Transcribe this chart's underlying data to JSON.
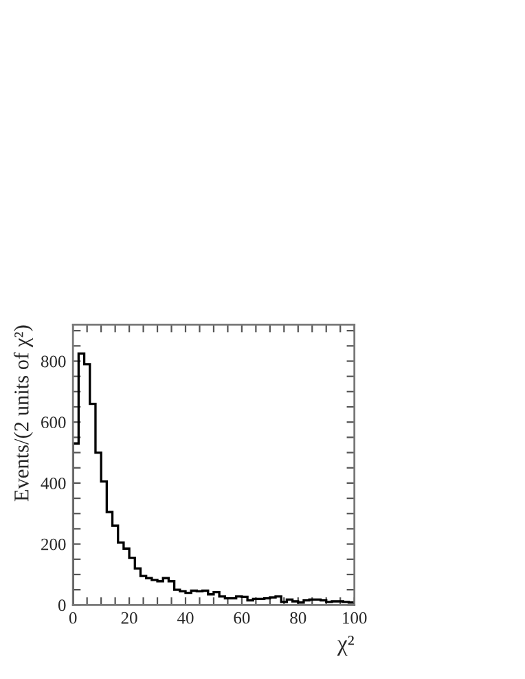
{
  "chart_data": {
    "type": "histogram",
    "xlabel": "χ²",
    "ylabel": "Events/(2 units of χ²)",
    "bins": [
      0,
      2,
      4,
      6,
      8,
      10,
      12,
      14,
      16,
      18,
      20,
      22,
      24,
      26,
      28,
      30,
      32,
      34,
      36,
      38,
      40,
      42,
      44,
      46,
      48,
      50,
      52,
      54,
      56,
      58,
      60,
      62,
      64,
      66,
      68,
      70,
      72,
      74,
      76,
      78,
      80,
      82,
      84,
      86,
      88,
      90,
      92,
      94,
      96,
      98,
      100
    ],
    "values": [
      530,
      825,
      790,
      660,
      500,
      405,
      305,
      260,
      205,
      185,
      155,
      120,
      95,
      88,
      82,
      78,
      88,
      78,
      50,
      45,
      40,
      47,
      45,
      47,
      35,
      42,
      28,
      22,
      22,
      28,
      27,
      15,
      20,
      20,
      22,
      25,
      28,
      10,
      18,
      12,
      8,
      15,
      18,
      18,
      15,
      10,
      12,
      12,
      10,
      8
    ],
    "color": "#000000",
    "xlim": [
      0,
      100
    ],
    "ylim": [
      0,
      920
    ],
    "xticks": [
      0,
      {
        "value": 5,
        "label": null
      },
      {
        "value": 10,
        "label": null
      },
      {
        "value": 15,
        "label": null
      },
      20,
      {
        "value": 25,
        "label": null
      },
      {
        "value": 30,
        "label": null
      },
      {
        "value": 35,
        "label": null
      },
      40,
      {
        "value": 45,
        "label": null
      },
      {
        "value": 50,
        "label": null
      },
      {
        "value": 55,
        "label": null
      },
      60,
      {
        "value": 65,
        "label": null
      },
      {
        "value": 70,
        "label": null
      },
      {
        "value": 75,
        "label": null
      },
      80,
      {
        "value": 85,
        "label": null
      },
      {
        "value": 90,
        "label": null
      },
      {
        "value": 95,
        "label": null
      },
      100
    ],
    "yticks": [
      0,
      {
        "value": 50,
        "label": null
      },
      {
        "value": 100,
        "label": null
      },
      {
        "value": 150,
        "label": null
      },
      200,
      {
        "value": 250,
        "label": null
      },
      {
        "value": 300,
        "label": null
      },
      {
        "value": 350,
        "label": null
      },
      400,
      {
        "value": 450,
        "label": null
      },
      {
        "value": 500,
        "label": null
      },
      {
        "value": 550,
        "label": null
      },
      600,
      {
        "value": 650,
        "label": null
      },
      {
        "value": 700,
        "label": null
      },
      {
        "value": 750,
        "label": null
      },
      800,
      {
        "value": 850,
        "label": null
      },
      {
        "value": 900,
        "label": null
      }
    ],
    "grid": false
  }
}
